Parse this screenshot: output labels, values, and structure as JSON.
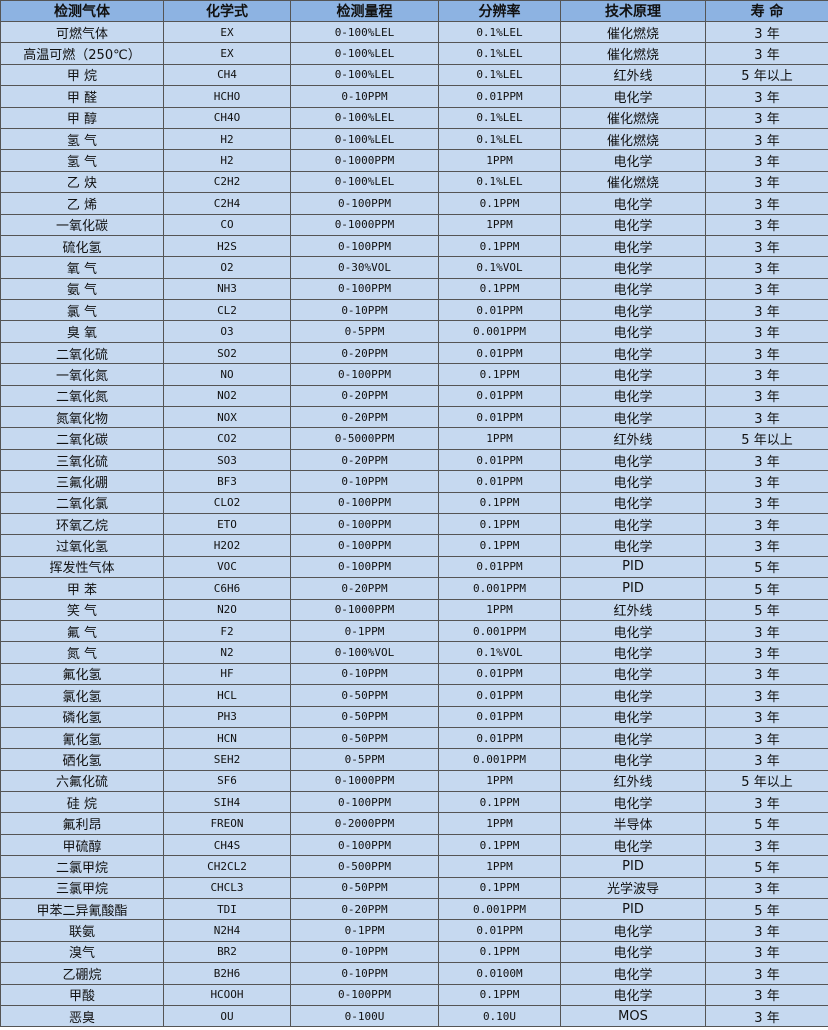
{
  "colors": {
    "header_bg": "#8db3e2",
    "row_bg": "#c6d9f0",
    "border": "#555555"
  },
  "headers": [
    "检测气体",
    "化学式",
    "检测量程",
    "分辨率",
    "技术原理",
    "寿 命"
  ],
  "rows": [
    [
      "可燃气体",
      "EX",
      "0-100%LEL",
      "0.1%LEL",
      "催化燃烧",
      "3 年"
    ],
    [
      "高温可燃（250℃）",
      "EX",
      "0-100%LEL",
      "0.1%LEL",
      "催化燃烧",
      "3 年"
    ],
    [
      "甲 烷",
      "CH4",
      "0-100%LEL",
      "0.1%LEL",
      "红外线",
      "5 年以上"
    ],
    [
      "甲 醛",
      "HCHO",
      "0-10PPM",
      "0.01PPM",
      "电化学",
      "3 年"
    ],
    [
      "甲 醇",
      "CH4O",
      "0-100%LEL",
      "0.1%LEL",
      "催化燃烧",
      "3 年"
    ],
    [
      "氢 气",
      "H2",
      "0-100%LEL",
      "0.1%LEL",
      "催化燃烧",
      "3 年"
    ],
    [
      "氢 气",
      "H2",
      "0-1000PPM",
      "1PPM",
      "电化学",
      "3 年"
    ],
    [
      "乙 炔",
      "C2H2",
      "0-100%LEL",
      "0.1%LEL",
      "催化燃烧",
      "3 年"
    ],
    [
      "乙 烯",
      "C2H4",
      "0-100PPM",
      "0.1PPM",
      "电化学",
      "3 年"
    ],
    [
      "一氧化碳",
      "CO",
      "0-1000PPM",
      "1PPM",
      "电化学",
      "3 年"
    ],
    [
      "硫化氢",
      "H2S",
      "0-100PPM",
      "0.1PPM",
      "电化学",
      "3 年"
    ],
    [
      "氧 气",
      "O2",
      "0-30%VOL",
      "0.1%VOL",
      "电化学",
      "3 年"
    ],
    [
      "氨 气",
      "NH3",
      "0-100PPM",
      "0.1PPM",
      "电化学",
      "3 年"
    ],
    [
      "氯 气",
      "CL2",
      "0-10PPM",
      "0.01PPM",
      "电化学",
      "3 年"
    ],
    [
      "臭 氧",
      "O3",
      "0-5PPM",
      "0.001PPM",
      "电化学",
      "3 年"
    ],
    [
      "二氧化硫",
      "SO2",
      "0-20PPM",
      "0.01PPM",
      "电化学",
      "3 年"
    ],
    [
      "一氧化氮",
      "NO",
      "0-100PPM",
      "0.1PPM",
      "电化学",
      "3 年"
    ],
    [
      "二氧化氮",
      "NO2",
      "0-20PPM",
      "0.01PPM",
      "电化学",
      "3 年"
    ],
    [
      "氮氧化物",
      "NOX",
      "0-20PPM",
      "0.01PPM",
      "电化学",
      "3 年"
    ],
    [
      "二氧化碳",
      "CO2",
      "0-5000PPM",
      "1PPM",
      "红外线",
      "5 年以上"
    ],
    [
      "三氧化硫",
      "SO3",
      "0-20PPM",
      "0.01PPM",
      "电化学",
      "3 年"
    ],
    [
      "三氟化硼",
      "BF3",
      "0-10PPM",
      "0.01PPM",
      "电化学",
      "3 年"
    ],
    [
      "二氧化氯",
      "CLO2",
      "0-100PPM",
      "0.1PPM",
      "电化学",
      "3 年"
    ],
    [
      "环氧乙烷",
      "ETO",
      "0-100PPM",
      "0.1PPM",
      "电化学",
      "3 年"
    ],
    [
      "过氧化氢",
      "H2O2",
      "0-100PPM",
      "0.1PPM",
      "电化学",
      "3 年"
    ],
    [
      "挥发性气体",
      "VOC",
      "0-100PPM",
      "0.01PPM",
      "PID",
      "5 年"
    ],
    [
      "甲 苯",
      "C6H6",
      "0-20PPM",
      "0.001PPM",
      "PID",
      "5 年"
    ],
    [
      "笑 气",
      "N2O",
      "0-1000PPM",
      "1PPM",
      "红外线",
      "5 年"
    ],
    [
      "氟 气",
      "F2",
      "0-1PPM",
      "0.001PPM",
      "电化学",
      "3 年"
    ],
    [
      "氮 气",
      "N2",
      "0-100%VOL",
      "0.1%VOL",
      "电化学",
      "3 年"
    ],
    [
      "氟化氢",
      "HF",
      "0-10PPM",
      "0.01PPM",
      "电化学",
      "3 年"
    ],
    [
      "氯化氢",
      "HCL",
      "0-50PPM",
      "0.01PPM",
      "电化学",
      "3 年"
    ],
    [
      "磷化氢",
      "PH3",
      "0-50PPM",
      "0.01PPM",
      "电化学",
      "3 年"
    ],
    [
      "氰化氢",
      "HCN",
      "0-50PPM",
      "0.01PPM",
      "电化学",
      "3 年"
    ],
    [
      "硒化氢",
      "SEH2",
      "0-5PPM",
      "0.001PPM",
      "电化学",
      "3 年"
    ],
    [
      "六氟化硫",
      "SF6",
      "0-1000PPM",
      "1PPM",
      "红外线",
      "5 年以上"
    ],
    [
      "硅 烷",
      "SIH4",
      "0-100PPM",
      "0.1PPM",
      "电化学",
      "3 年"
    ],
    [
      "氟利昂",
      "FREON",
      "0-2000PPM",
      "1PPM",
      "半导体",
      "5 年"
    ],
    [
      "甲硫醇",
      "CH4S",
      "0-100PPM",
      "0.1PPM",
      "电化学",
      "3 年"
    ],
    [
      "二氯甲烷",
      "CH2CL2",
      "0-500PPM",
      "1PPM",
      "PID",
      "5 年"
    ],
    [
      "三氯甲烷",
      "CHCL3",
      "0-50PPM",
      "0.1PPM",
      "光学波导",
      "3 年"
    ],
    [
      "甲苯二异氰酸酯",
      "TDI",
      "0-20PPM",
      "0.001PPM",
      "PID",
      "5 年"
    ],
    [
      "联氨",
      "N2H4",
      "0-1PPM",
      "0.01PPM",
      "电化学",
      "3 年"
    ],
    [
      "溴气",
      "BR2",
      "0-10PPM",
      "0.1PPM",
      "电化学",
      "3 年"
    ],
    [
      "乙硼烷",
      "B2H6",
      "0-10PPM",
      "0.0100M",
      "电化学",
      "3 年"
    ],
    [
      "甲酸",
      "HCOOH",
      "0-100PPM",
      "0.1PPM",
      "电化学",
      "3 年"
    ],
    [
      "恶臭",
      "OU",
      "0-100U",
      "0.10U",
      "MOS",
      "3 年"
    ]
  ]
}
